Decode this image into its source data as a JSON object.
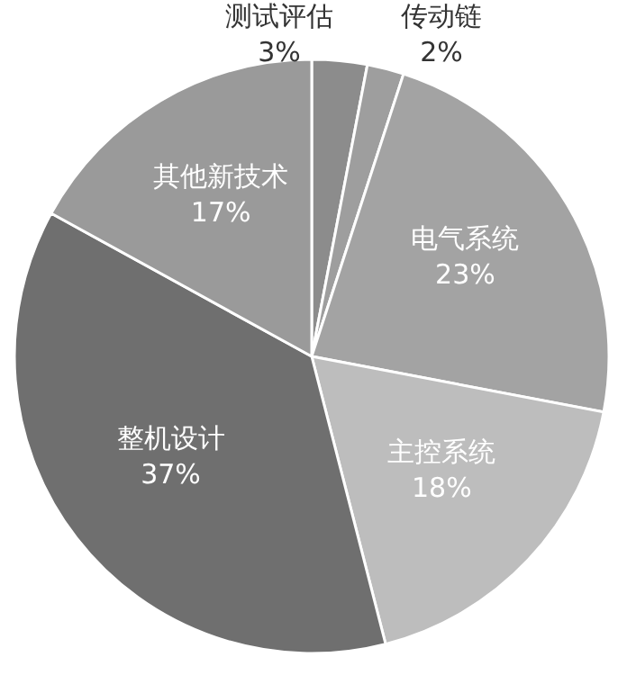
{
  "chart_data": {
    "type": "pie",
    "categories": [
      "测试评估",
      "传动链",
      "电气系统",
      "主控系统",
      "整机设计",
      "其他新技术"
    ],
    "values": [
      3,
      2,
      23,
      18,
      37,
      17
    ],
    "colors": [
      "#8c8c8c",
      "#9e9e9e",
      "#a3a3a3",
      "#bdbdbd",
      "#6f6f6f",
      "#9a9a9a"
    ],
    "value_labels": [
      "3%",
      "2%",
      "23%",
      "18%",
      "37%",
      "17%"
    ]
  }
}
